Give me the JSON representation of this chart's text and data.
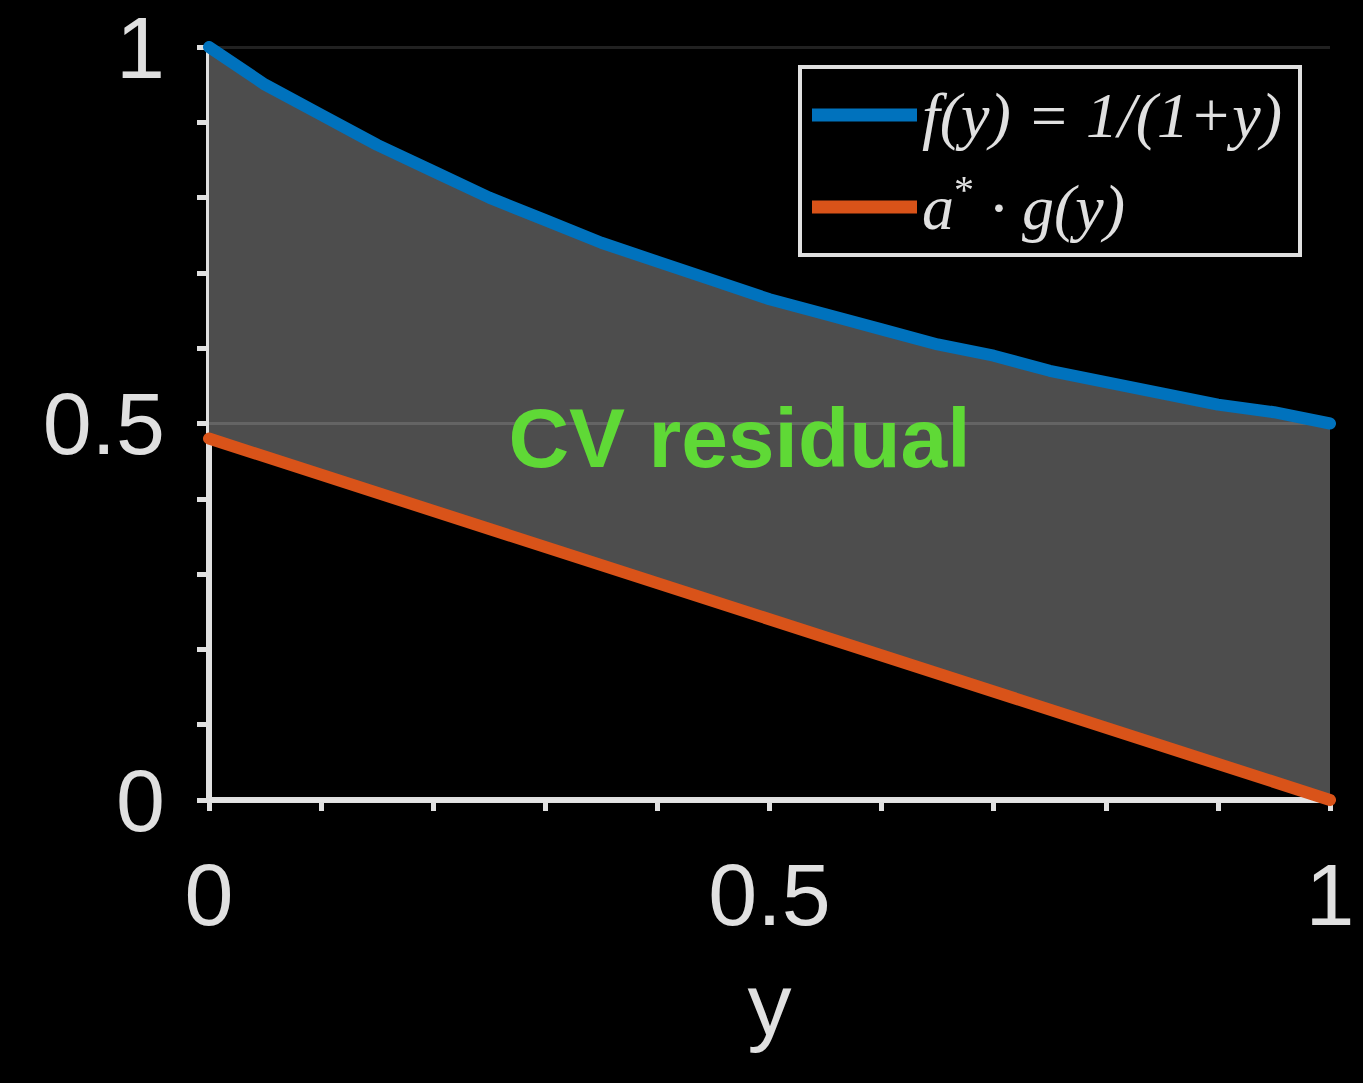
{
  "chart_data": {
    "type": "line",
    "xlabel": "y",
    "x": [
      0,
      0.05,
      0.1,
      0.15,
      0.2,
      0.25,
      0.3,
      0.35,
      0.4,
      0.45,
      0.5,
      0.55,
      0.6,
      0.65,
      0.7,
      0.75,
      0.8,
      0.85,
      0.9,
      0.95,
      1
    ],
    "series": [
      {
        "name": "f(y) = 1/(1+y)",
        "color": "#0072bd",
        "values": [
          1,
          0.95,
          0.91,
          0.87,
          0.835,
          0.8,
          0.77,
          0.74,
          0.715,
          0.69,
          0.665,
          0.645,
          0.625,
          0.605,
          0.59,
          0.57,
          0.555,
          0.54,
          0.525,
          0.515,
          0.5
        ],
        "lower": [
          0.48,
          0.455,
          0.43,
          0.41,
          0.385,
          0.36,
          0.335,
          0.31,
          0.29,
          0.265,
          0.24,
          0.215,
          0.19,
          0.17,
          0.145,
          0.12,
          0.095,
          0.07,
          0.05,
          0.025,
          0
        ],
        "upper": [
          1,
          0.95,
          0.91,
          0.87,
          0.835,
          0.8,
          0.77,
          0.74,
          0.715,
          0.69,
          0.665,
          0.645,
          0.625,
          0.605,
          0.59,
          0.57,
          0.555,
          0.54,
          0.525,
          0.515,
          0.5
        ]
      },
      {
        "name": "a$^{*}$ · g(y)",
        "color": "#d95319",
        "x": [
          0,
          1
        ],
        "values": [
          0.48,
          0
        ]
      }
    ],
    "xlim": [
      0,
      1
    ],
    "ylim": [
      0,
      1
    ],
    "xticks": [
      0,
      {
        "value": 0.1,
        "label": null
      },
      {
        "value": 0.2,
        "label": null
      },
      {
        "value": 0.3,
        "label": null
      },
      {
        "value": 0.4,
        "label": null
      },
      0.5,
      {
        "value": 0.6,
        "label": null
      },
      {
        "value": 0.7,
        "label": null
      },
      {
        "value": 0.8,
        "label": null
      },
      {
        "value": 0.9,
        "label": null
      },
      1
    ],
    "yticks": [
      0,
      {
        "value": 0.1,
        "label": null
      },
      {
        "value": 0.2,
        "label": null
      },
      {
        "value": 0.3,
        "label": null
      },
      {
        "value": 0.4,
        "label": null
      },
      0.5,
      {
        "value": 0.6,
        "label": null
      },
      {
        "value": 0.7,
        "label": null
      },
      {
        "value": 0.8,
        "label": null
      },
      {
        "value": 0.9,
        "label": null
      },
      1
    ],
    "grid": "y",
    "legend": "top right",
    "annotations": [
      "CV residual"
    ]
  }
}
